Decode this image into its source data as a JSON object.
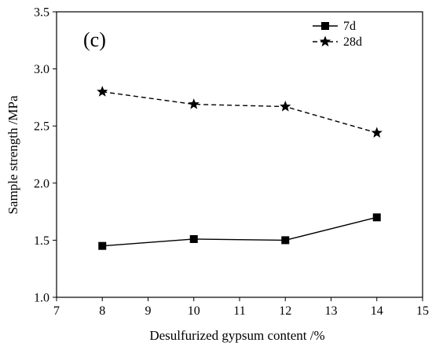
{
  "chart_data": {
    "type": "line",
    "panel_label": "(c)",
    "xlabel": "Desulfurized gypsum content /%",
    "ylabel": "Sample strength /MPa",
    "xlim": [
      7,
      15
    ],
    "ylim": [
      1.0,
      3.5
    ],
    "xticks": [
      7,
      8,
      9,
      10,
      11,
      12,
      13,
      14,
      15
    ],
    "yticks": [
      "1.0",
      "1.5",
      "2.0",
      "2.5",
      "3.0",
      "3.5"
    ],
    "grid": false,
    "legend_position": "top-right",
    "series": [
      {
        "name": "7d",
        "marker": "square",
        "line_style": "solid",
        "x": [
          8,
          10,
          12,
          14
        ],
        "y": [
          1.45,
          1.51,
          1.5,
          1.7
        ]
      },
      {
        "name": "28d",
        "marker": "star",
        "line_style": "dashed",
        "x": [
          8,
          10,
          12,
          14
        ],
        "y": [
          2.8,
          2.69,
          2.67,
          2.44
        ]
      }
    ],
    "colors": {
      "line": "#000000",
      "background": "#ffffff"
    }
  }
}
